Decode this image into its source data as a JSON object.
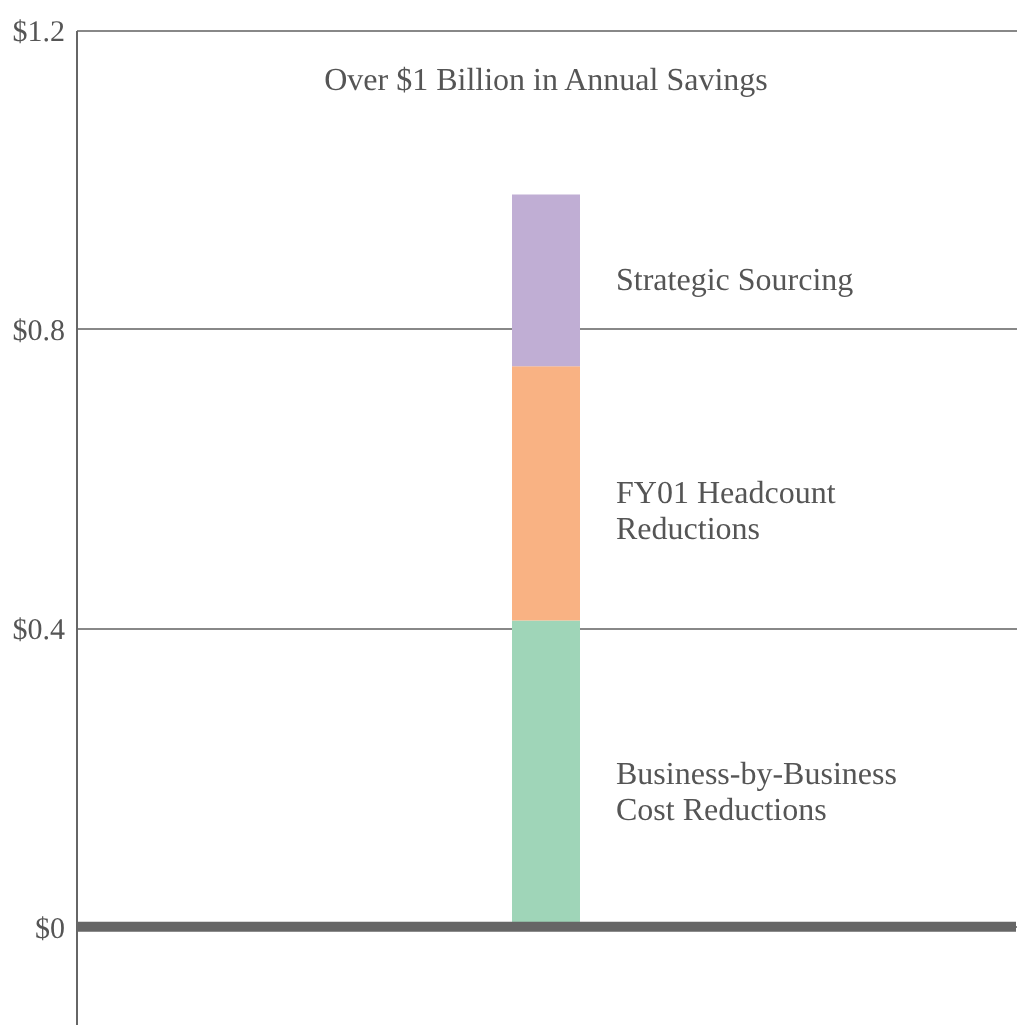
{
  "chart_data": {
    "type": "bar",
    "stacked": true,
    "title": "Over $1 Billion in Annual Savings",
    "categories": [
      null
    ],
    "series": [
      {
        "name": "Business-by-Business\nCost Reductions",
        "color": "#9fd5b8",
        "values": [
          0.41
        ]
      },
      {
        "name": "FY01 Headcount\nReductions",
        "color": "#f9b283",
        "values": [
          0.34
        ]
      },
      {
        "name": "Strategic Sourcing",
        "color": "#c0aed4",
        "values": [
          0.23
        ]
      }
    ],
    "ylim": [
      -0.13,
      1.2
    ],
    "yticks": [
      {
        "value": 0,
        "label": "$0"
      },
      {
        "value": 0.4,
        "label": "$0.4"
      },
      {
        "value": 0.8,
        "label": "$0.8"
      },
      {
        "value": 1.2,
        "label": "$1.2"
      }
    ],
    "grid": "y",
    "ref_lines": [
      {
        "axis": "y",
        "value": 0,
        "color": "#666666"
      }
    ]
  }
}
